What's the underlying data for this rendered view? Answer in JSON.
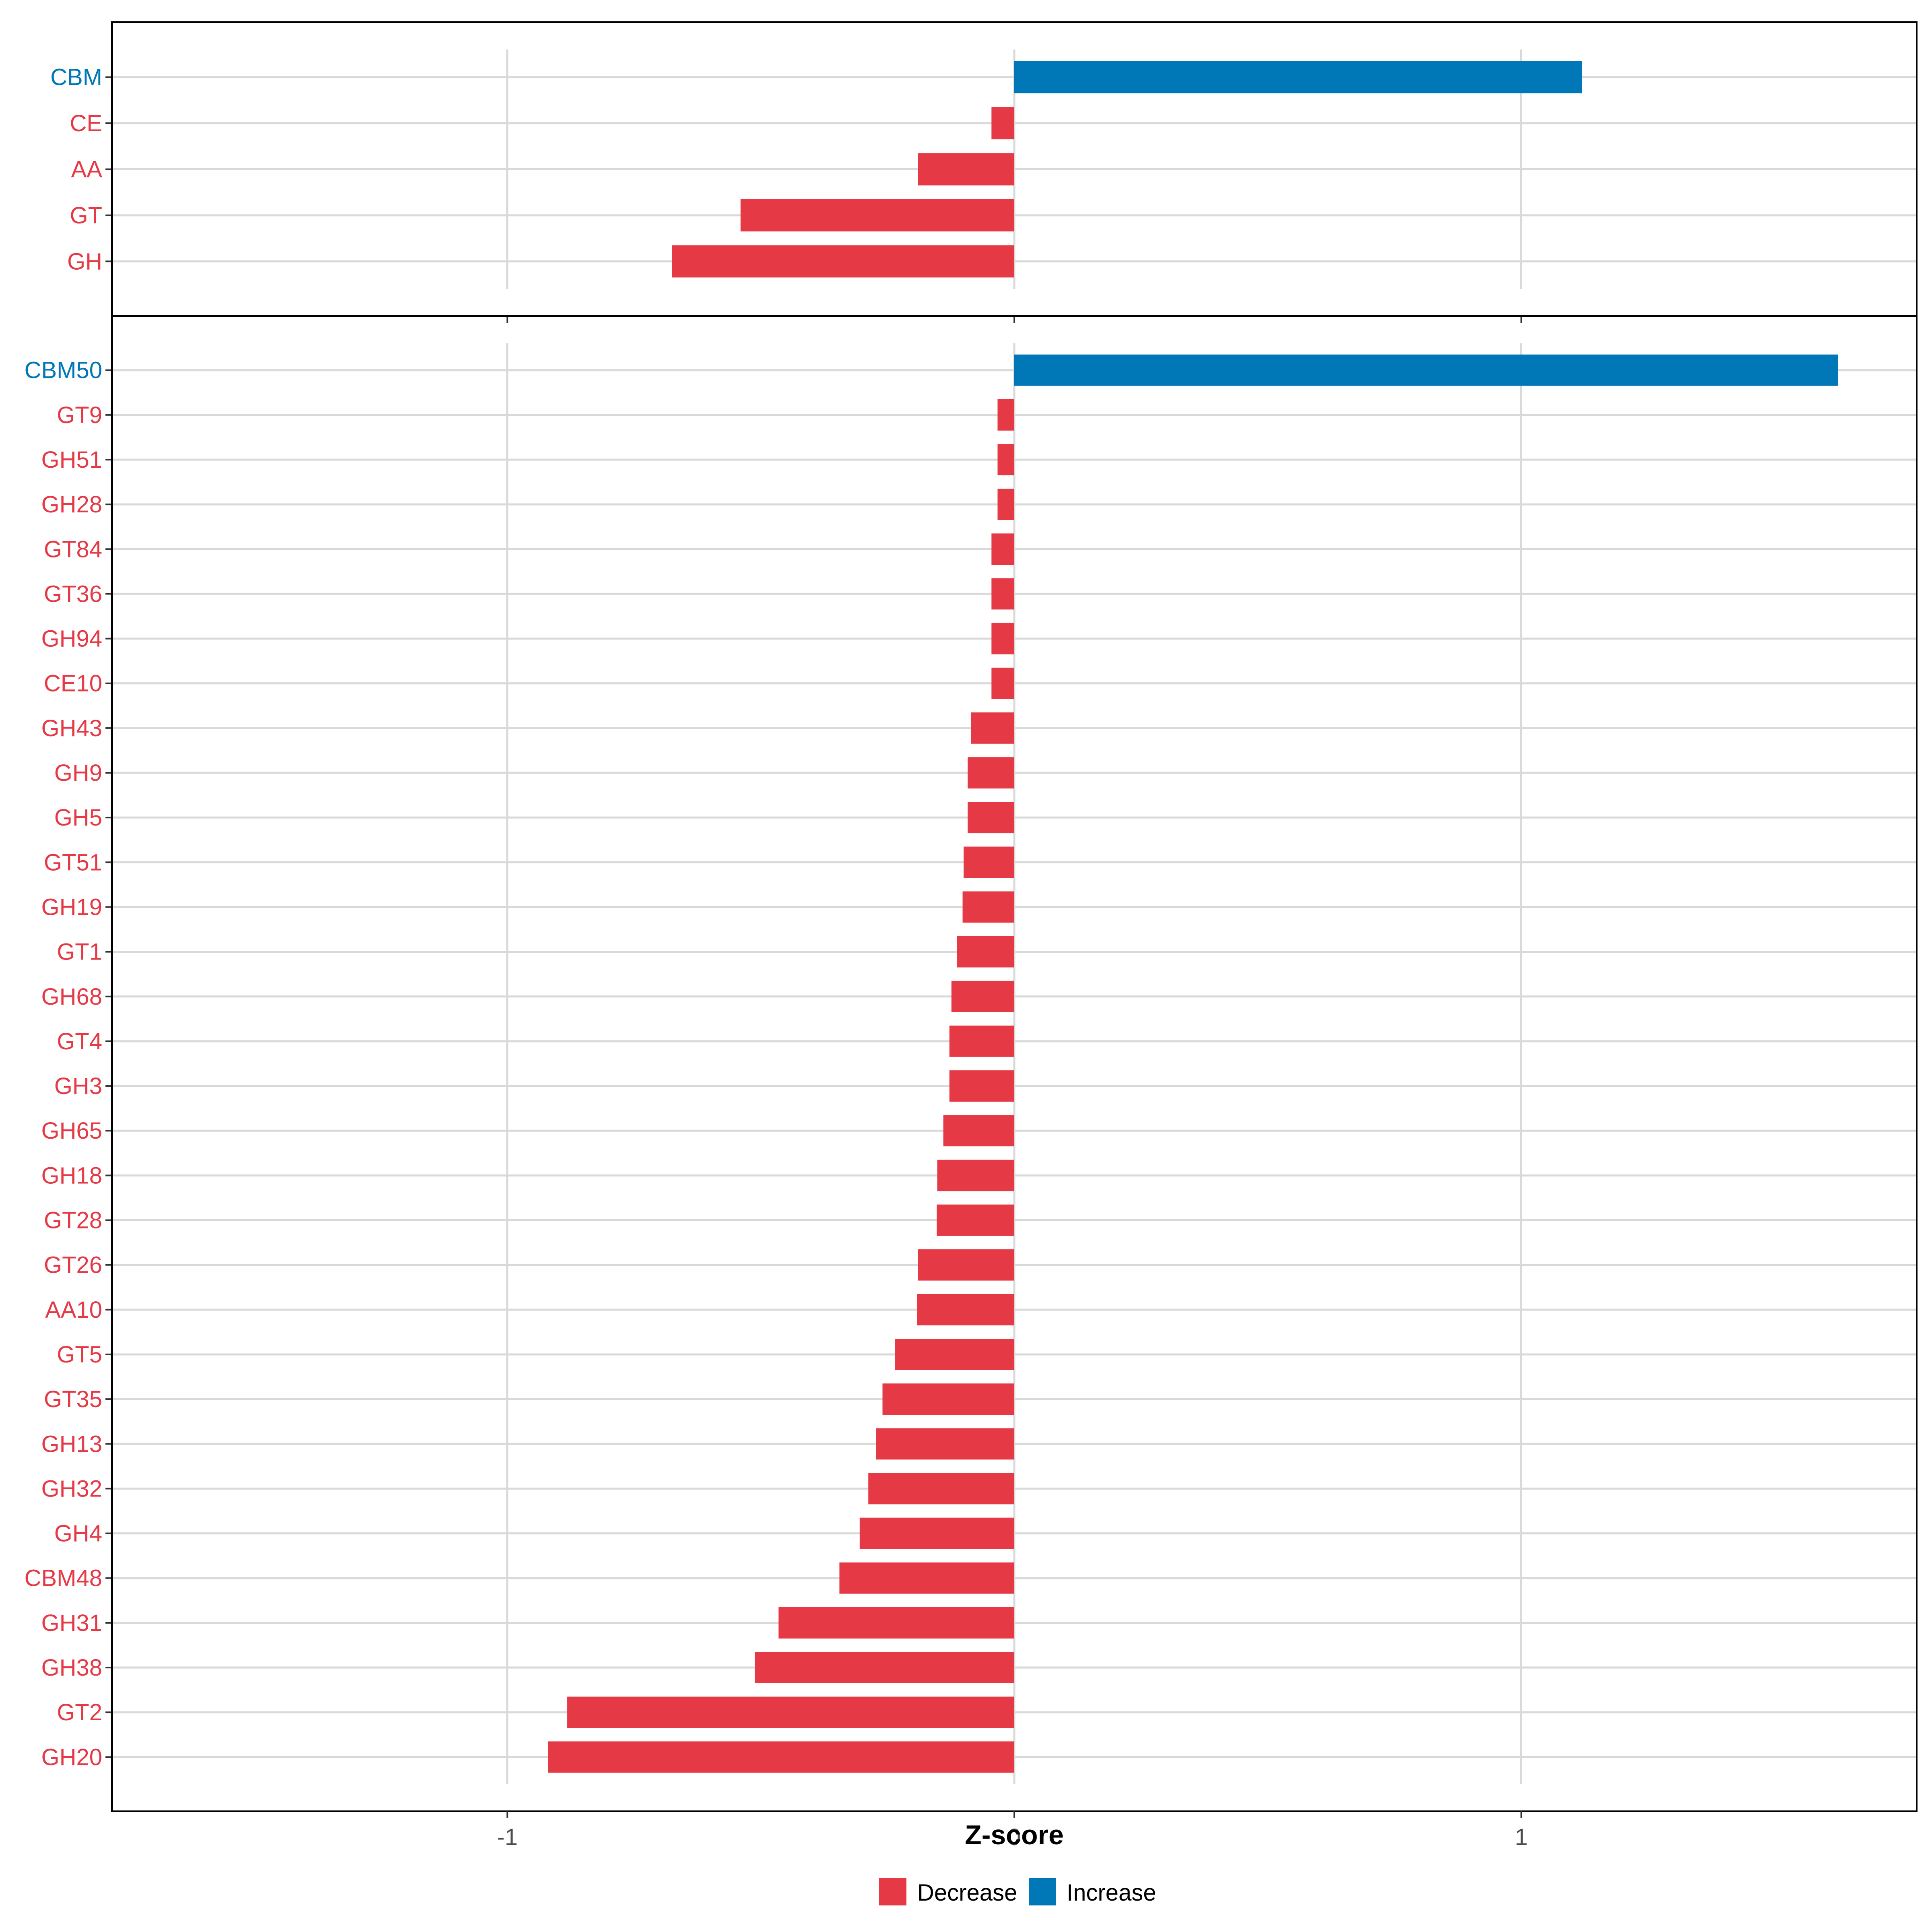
{
  "colors": {
    "decrease": "#E63946",
    "increase": "#0077B6",
    "grid": "#D9D9D9",
    "panel_border": "#000000"
  },
  "chart_data": {
    "type": "bar",
    "orientation": "horizontal",
    "xlabel": "Z-score",
    "xlim": [
      -1.78,
      1.78
    ],
    "xticks": [
      -1,
      0,
      1
    ],
    "xtick_labels": [
      "-1",
      "0",
      "1"
    ],
    "legend": {
      "placement": "bottom",
      "entries": [
        "Decrease",
        "Increase"
      ]
    },
    "panels": [
      {
        "name": "class",
        "categories": [
          "CBM",
          "CE",
          "AA",
          "GT",
          "GH"
        ],
        "values": [
          1.12,
          -0.045,
          -0.19,
          -0.54,
          -0.675
        ]
      },
      {
        "name": "family",
        "categories": [
          "CBM50",
          "GT9",
          "GH51",
          "GH28",
          "GT84",
          "GT36",
          "GH94",
          "CE10",
          "GH43",
          "GH9",
          "GH5",
          "GT51",
          "GH19",
          "GT1",
          "GH68",
          "GT4",
          "GH3",
          "GH65",
          "GH18",
          "GT28",
          "GT26",
          "AA10",
          "GT5",
          "GT35",
          "GH13",
          "GH32",
          "GH4",
          "CBM48",
          "GH31",
          "GH38",
          "GT2",
          "GH20"
        ],
        "values": [
          1.625,
          -0.033,
          -0.033,
          -0.033,
          -0.045,
          -0.045,
          -0.045,
          -0.045,
          -0.085,
          -0.092,
          -0.092,
          -0.1,
          -0.102,
          -0.113,
          -0.124,
          -0.128,
          -0.128,
          -0.14,
          -0.152,
          -0.153,
          -0.19,
          -0.192,
          -0.235,
          -0.26,
          -0.273,
          -0.288,
          -0.305,
          -0.345,
          -0.465,
          -0.512,
          -0.882,
          -0.92
        ]
      }
    ]
  }
}
